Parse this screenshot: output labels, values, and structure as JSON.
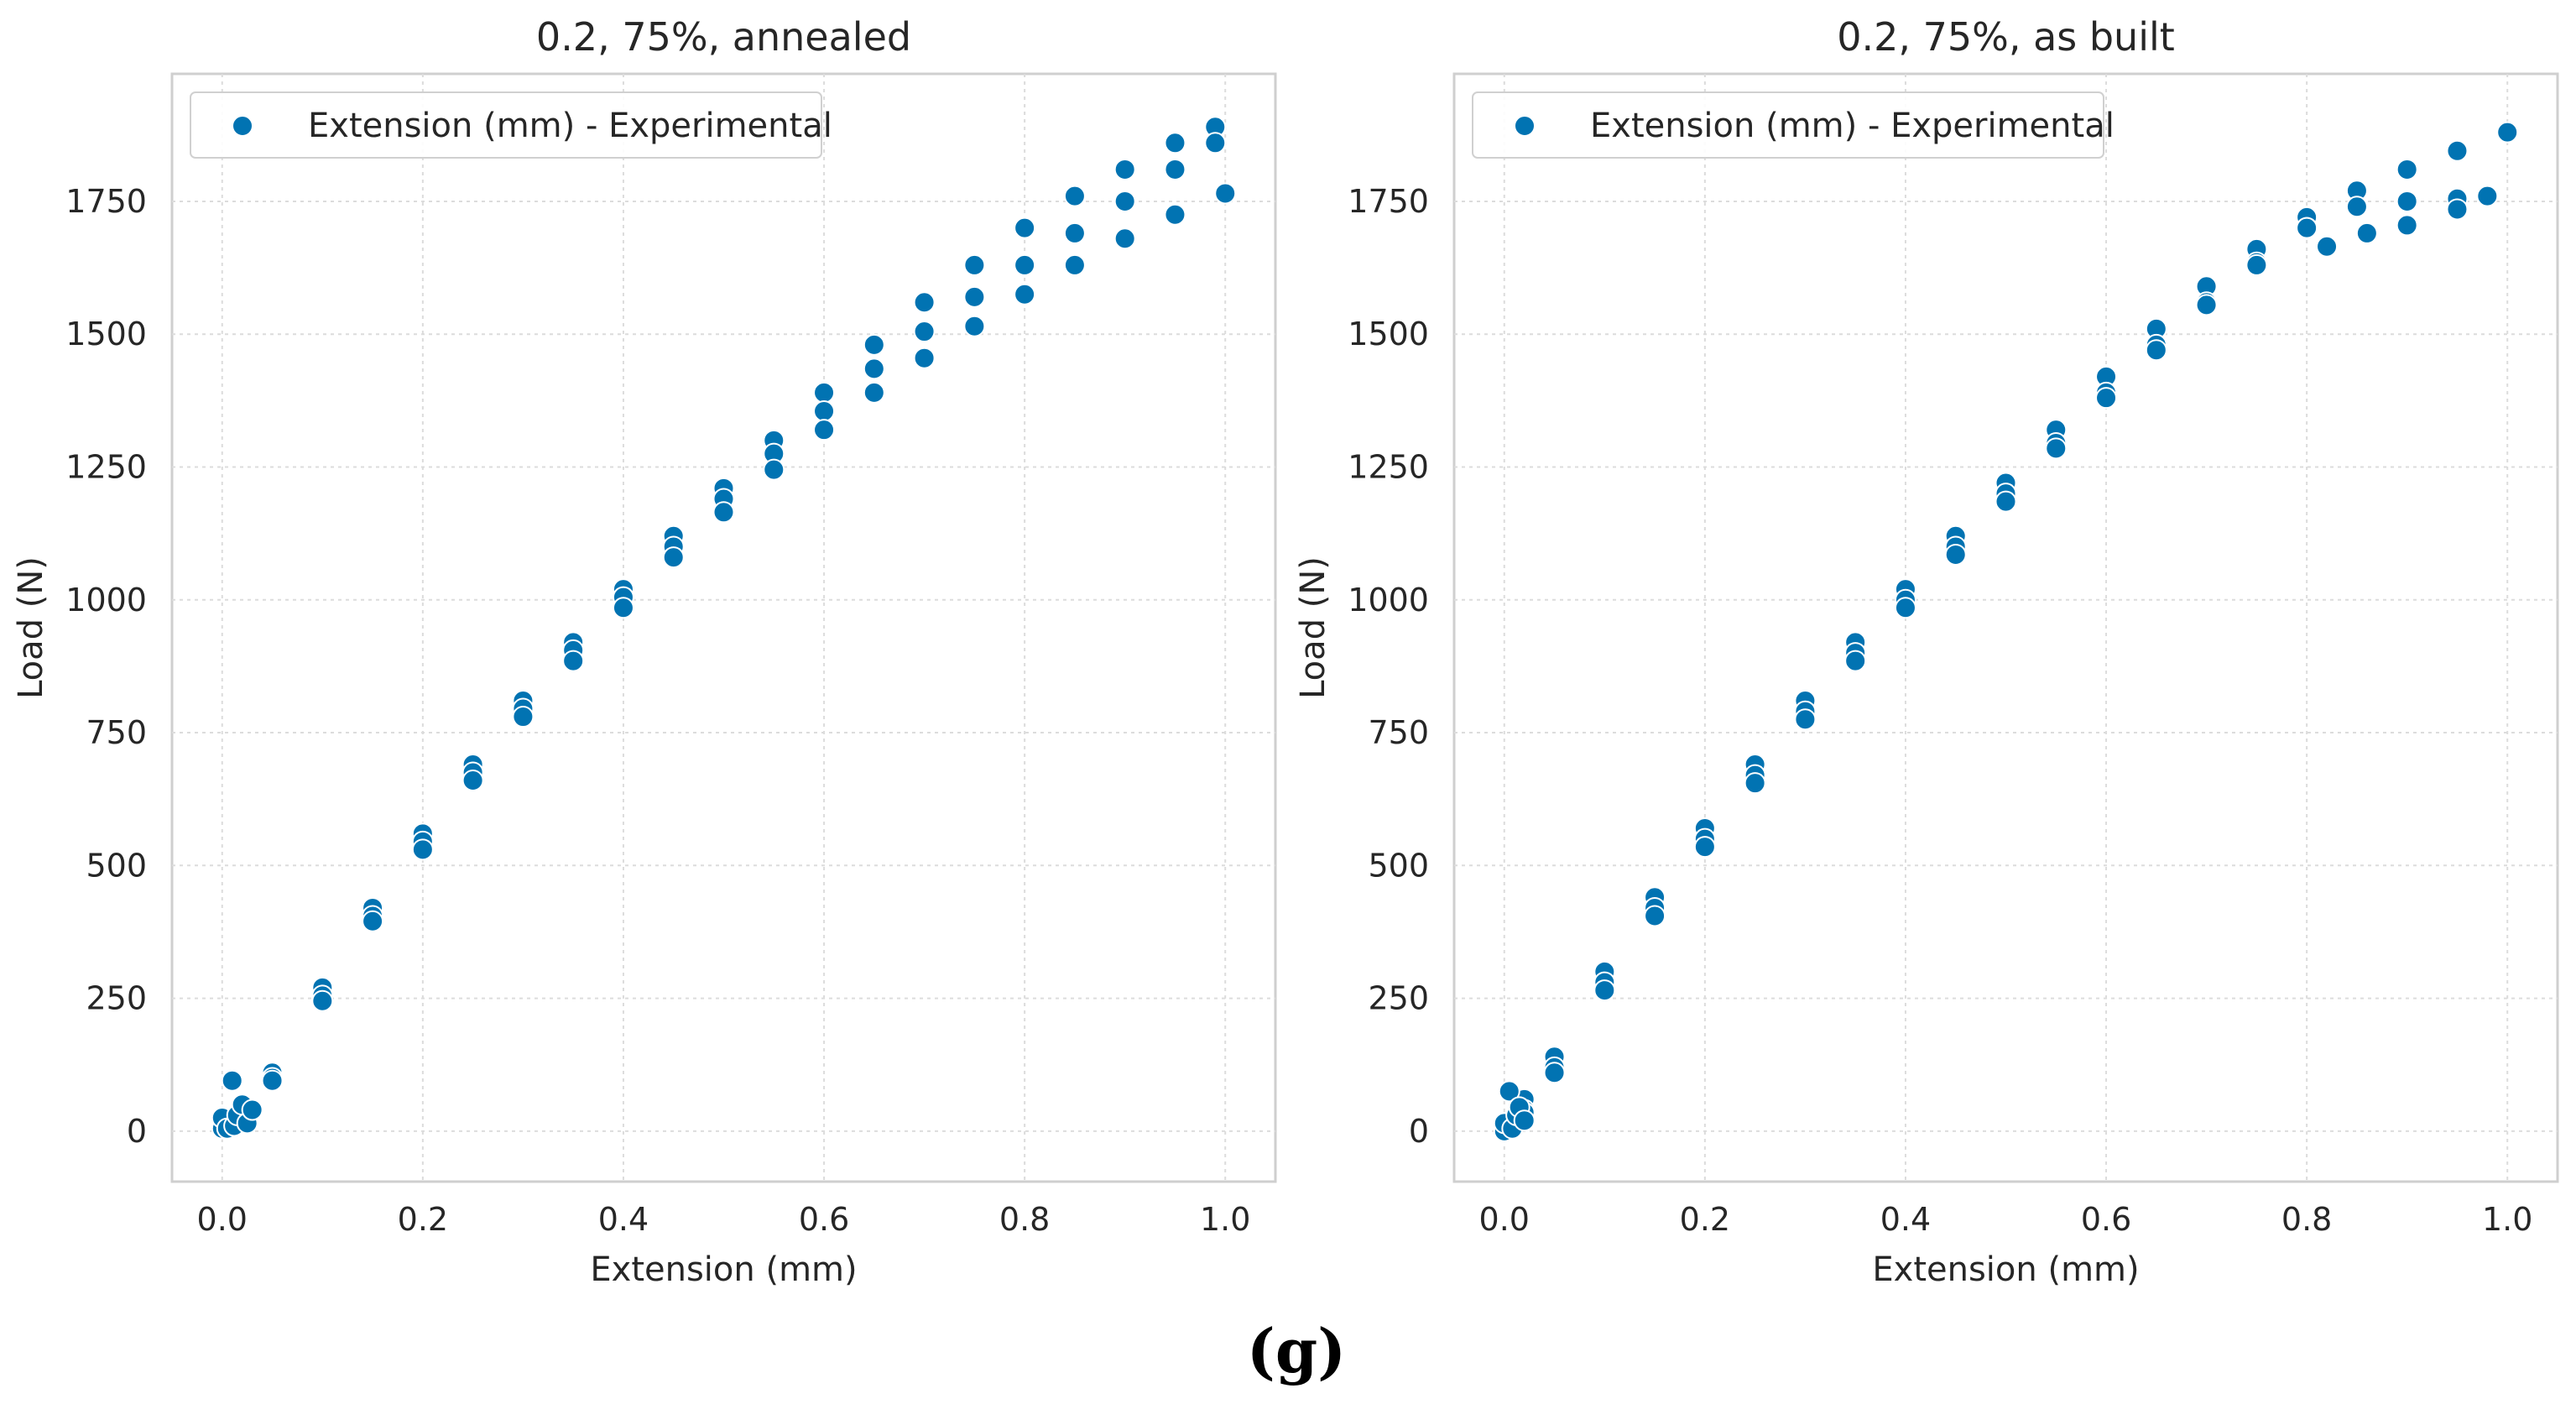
{
  "figure_label": "(g)",
  "chart_data": [
    {
      "type": "scatter",
      "title": "0.2, 75%, annealed",
      "xlabel": "Extension (mm)",
      "ylabel": "Load (N)",
      "xlim": [
        -0.05,
        1.05
      ],
      "ylim": [
        -95,
        1990
      ],
      "xticks": [
        "0.0",
        "0.2",
        "0.4",
        "0.6",
        "0.8",
        "1.0"
      ],
      "yticks": [
        "0",
        "250",
        "500",
        "750",
        "1000",
        "1250",
        "1500",
        "1750"
      ],
      "grid": true,
      "legend": {
        "entries": [
          "Extension (mm) - Experimental"
        ],
        "placement": "top-left"
      },
      "color": "#0173b2",
      "series": [
        {
          "name": "Extension (mm) - Experimental (run 1)",
          "x": [
            0.0,
            0.02,
            0.05,
            0.1,
            0.15,
            0.2,
            0.25,
            0.3,
            0.35,
            0.4,
            0.45,
            0.5,
            0.55,
            0.6,
            0.65,
            0.7,
            0.75,
            0.8,
            0.85,
            0.9,
            0.95,
            0.99
          ],
          "y": [
            20,
            30,
            110,
            270,
            420,
            560,
            690,
            810,
            920,
            1020,
            1120,
            1210,
            1300,
            1390,
            1480,
            1560,
            1630,
            1700,
            1760,
            1810,
            1860,
            1890
          ]
        },
        {
          "name": "Extension (mm) - Experimental (run 2)",
          "x": [
            0.0,
            0.02,
            0.05,
            0.1,
            0.15,
            0.2,
            0.25,
            0.3,
            0.35,
            0.4,
            0.45,
            0.5,
            0.55,
            0.6,
            0.65,
            0.7,
            0.75,
            0.8,
            0.85,
            0.9,
            0.95,
            0.99
          ],
          "y": [
            10,
            25,
            100,
            255,
            405,
            545,
            675,
            795,
            905,
            1005,
            1100,
            1190,
            1275,
            1355,
            1435,
            1505,
            1570,
            1630,
            1690,
            1750,
            1810,
            1860
          ]
        },
        {
          "name": "Extension (mm) - Experimental (run 3)",
          "x": [
            0.0,
            0.02,
            0.05,
            0.1,
            0.15,
            0.2,
            0.25,
            0.3,
            0.35,
            0.4,
            0.45,
            0.5,
            0.55,
            0.6,
            0.65,
            0.7,
            0.75,
            0.8,
            0.85,
            0.9,
            0.95,
            1.0
          ],
          "y": [
            5,
            20,
            95,
            245,
            395,
            530,
            660,
            780,
            885,
            985,
            1080,
            1165,
            1245,
            1320,
            1390,
            1455,
            1515,
            1575,
            1630,
            1680,
            1725,
            1765
          ]
        },
        {
          "name": "Extension (mm) - Experimental (initial)",
          "x": [
            0.0,
            0.005,
            0.01,
            0.012,
            0.015,
            0.02,
            0.025,
            0.03
          ],
          "y": [
            25,
            5,
            95,
            10,
            30,
            50,
            15,
            40
          ]
        }
      ]
    },
    {
      "type": "scatter",
      "title": "0.2, 75%, as built",
      "xlabel": "Extension (mm)",
      "ylabel": "Load (N)",
      "xlim": [
        -0.05,
        1.05
      ],
      "ylim": [
        -95,
        1990
      ],
      "xticks": [
        "0.0",
        "0.2",
        "0.4",
        "0.6",
        "0.8",
        "1.0"
      ],
      "yticks": [
        "0",
        "250",
        "500",
        "750",
        "1000",
        "1250",
        "1500",
        "1750"
      ],
      "grid": true,
      "legend": {
        "entries": [
          "Extension (mm) - Experimental"
        ],
        "placement": "top-left"
      },
      "color": "#0173b2",
      "series": [
        {
          "name": "Extension (mm) - Experimental (run 1)",
          "x": [
            0.0,
            0.02,
            0.05,
            0.1,
            0.15,
            0.2,
            0.25,
            0.3,
            0.35,
            0.4,
            0.45,
            0.5,
            0.55,
            0.6,
            0.65,
            0.7,
            0.75,
            0.8,
            0.85,
            0.9,
            0.95,
            1.0
          ],
          "y": [
            10,
            60,
            140,
            300,
            440,
            570,
            690,
            810,
            920,
            1020,
            1120,
            1220,
            1320,
            1420,
            1510,
            1590,
            1660,
            1720,
            1770,
            1810,
            1845,
            1880
          ]
        },
        {
          "name": "Extension (mm) - Experimental (run 2)",
          "x": [
            0.0,
            0.02,
            0.05,
            0.1,
            0.15,
            0.2,
            0.25,
            0.3,
            0.35,
            0.4,
            0.45,
            0.5,
            0.55,
            0.6,
            0.65,
            0.7,
            0.75,
            0.8,
            0.85,
            0.9,
            0.95,
            0.98
          ],
          "y": [
            5,
            40,
            120,
            280,
            420,
            550,
            670,
            790,
            900,
            1000,
            1100,
            1200,
            1295,
            1390,
            1480,
            1560,
            1635,
            1700,
            1740,
            1750,
            1755,
            1760
          ]
        },
        {
          "name": "Extension (mm) - Experimental (run 3)",
          "x": [
            0.0,
            0.02,
            0.05,
            0.1,
            0.15,
            0.2,
            0.25,
            0.3,
            0.35,
            0.4,
            0.45,
            0.5,
            0.55,
            0.6,
            0.65,
            0.7,
            0.75,
            0.8,
            0.82,
            0.86,
            0.9,
            0.95
          ],
          "y": [
            0,
            35,
            110,
            265,
            405,
            535,
            655,
            775,
            885,
            985,
            1085,
            1185,
            1285,
            1380,
            1470,
            1555,
            1630,
            1700,
            1665,
            1690,
            1705,
            1735
          ]
        },
        {
          "name": "Extension (mm) - Experimental (initial)",
          "x": [
            0.0,
            0.005,
            0.008,
            0.012,
            0.015,
            0.02
          ],
          "y": [
            15,
            75,
            5,
            30,
            45,
            20
          ]
        }
      ]
    }
  ]
}
